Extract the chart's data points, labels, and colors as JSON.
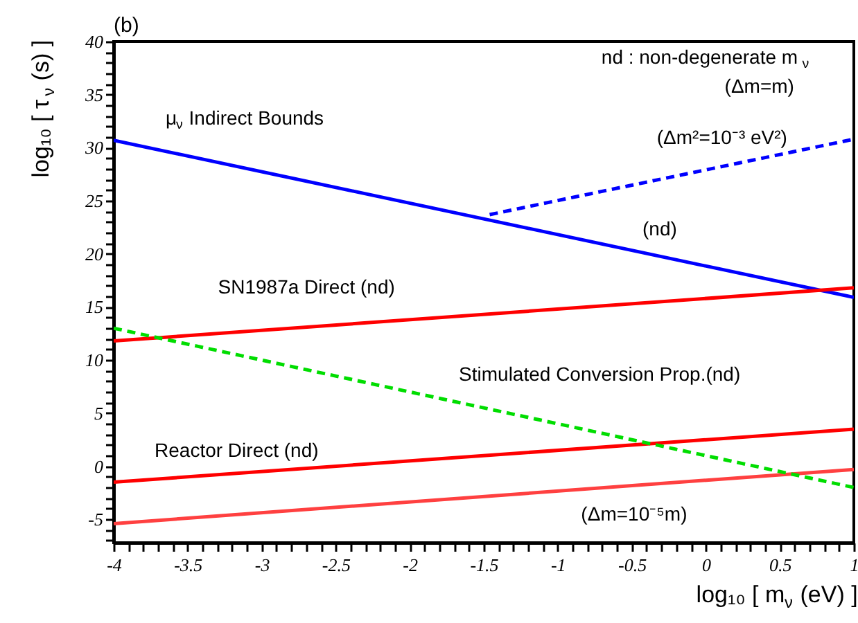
{
  "chart_data": {
    "type": "line",
    "xlabel": "log₁₀ [ m$_{ν}$ (eV) ]",
    "ylabel": "log₁₀ [ τ$_{ν}$ (s) ]",
    "xlim": [
      -4,
      1
    ],
    "ylim": [
      -7.2,
      40
    ],
    "xticks": [
      -4,
      {
        "value": -3.9,
        "label": null
      },
      {
        "value": -3.8,
        "label": null
      },
      {
        "value": -3.7,
        "label": null
      },
      {
        "value": -3.6,
        "label": null
      },
      -3.5,
      {
        "value": -3.4,
        "label": null
      },
      {
        "value": -3.3,
        "label": null
      },
      {
        "value": -3.2,
        "label": null
      },
      {
        "value": -3.1,
        "label": null
      },
      -3,
      {
        "value": -2.9,
        "label": null
      },
      {
        "value": -2.8,
        "label": null
      },
      {
        "value": -2.7,
        "label": null
      },
      {
        "value": -2.6,
        "label": null
      },
      -2.5,
      {
        "value": -2.4,
        "label": null
      },
      {
        "value": -2.3,
        "label": null
      },
      {
        "value": -2.2,
        "label": null
      },
      {
        "value": -2.1,
        "label": null
      },
      -2,
      {
        "value": -1.9,
        "label": null
      },
      {
        "value": -1.8,
        "label": null
      },
      {
        "value": -1.7,
        "label": null
      },
      {
        "value": -1.6,
        "label": null
      },
      -1.5,
      {
        "value": -1.4,
        "label": null
      },
      {
        "value": -1.3,
        "label": null
      },
      {
        "value": -1.2,
        "label": null
      },
      {
        "value": -1.1,
        "label": null
      },
      -1,
      {
        "value": -0.9,
        "label": null
      },
      {
        "value": -0.8,
        "label": null
      },
      {
        "value": -0.7,
        "label": null
      },
      {
        "value": -0.6,
        "label": null
      },
      -0.5,
      {
        "value": -0.4,
        "label": null
      },
      {
        "value": -0.3,
        "label": null
      },
      {
        "value": -0.2,
        "label": null
      },
      {
        "value": -0.1,
        "label": null
      },
      0,
      {
        "value": 0.1,
        "label": null
      },
      {
        "value": 0.2,
        "label": null
      },
      {
        "value": 0.3,
        "label": null
      },
      {
        "value": 0.4,
        "label": null
      },
      0.5,
      {
        "value": 0.6,
        "label": null
      },
      {
        "value": 0.7,
        "label": null
      },
      {
        "value": 0.8,
        "label": null
      },
      {
        "value": 0.9,
        "label": null
      },
      1
    ],
    "yticks": [
      {
        "value": -7,
        "label": null
      },
      {
        "value": -6,
        "label": null
      },
      -5,
      {
        "value": -4,
        "label": null
      },
      {
        "value": -3,
        "label": null
      },
      {
        "value": -2,
        "label": null
      },
      {
        "value": -1,
        "label": null
      },
      0,
      {
        "value": 1,
        "label": null
      },
      {
        "value": 2,
        "label": null
      },
      {
        "value": 3,
        "label": null
      },
      {
        "value": 4,
        "label": null
      },
      5,
      {
        "value": 6,
        "label": null
      },
      {
        "value": 7,
        "label": null
      },
      {
        "value": 8,
        "label": null
      },
      {
        "value": 9,
        "label": null
      },
      10,
      {
        "value": 11,
        "label": null
      },
      {
        "value": 12,
        "label": null
      },
      {
        "value": 13,
        "label": null
      },
      {
        "value": 14,
        "label": null
      },
      15,
      {
        "value": 16,
        "label": null
      },
      {
        "value": 17,
        "label": null
      },
      {
        "value": 18,
        "label": null
      },
      {
        "value": 19,
        "label": null
      },
      20,
      {
        "value": 21,
        "label": null
      },
      {
        "value": 22,
        "label": null
      },
      {
        "value": 23,
        "label": null
      },
      {
        "value": 24,
        "label": null
      },
      25,
      {
        "value": 26,
        "label": null
      },
      {
        "value": 27,
        "label": null
      },
      {
        "value": 28,
        "label": null
      },
      {
        "value": 29,
        "label": null
      },
      30,
      {
        "value": 31,
        "label": null
      },
      {
        "value": 32,
        "label": null
      },
      {
        "value": 33,
        "label": null
      },
      {
        "value": 34,
        "label": null
      },
      35,
      {
        "value": 36,
        "label": null
      },
      {
        "value": 37,
        "label": null
      },
      {
        "value": 38,
        "label": null
      },
      {
        "value": 39,
        "label": null
      },
      40
    ],
    "grid": false,
    "marker": "none",
    "series": [
      {
        "color": "#0000ff",
        "line_style": "solid",
        "x": [
          -4,
          1
        ],
        "values": [
          30.7,
          15.9
        ]
      },
      {
        "color": "#0000ff",
        "line_style": "dashed",
        "x": [
          -1.46,
          1
        ],
        "values": [
          23.7,
          30.8
        ]
      },
      {
        "color": "#ff0000",
        "line_style": "solid",
        "x": [
          -4,
          1
        ],
        "values": [
          11.8,
          16.8
        ]
      },
      {
        "color": "#ff0000",
        "line_style": "solid",
        "x": [
          -4,
          1
        ],
        "values": [
          -1.5,
          3.5
        ]
      },
      {
        "color": "#ff4040",
        "line_style": "solid",
        "x": [
          -4,
          1
        ],
        "values": [
          -5.4,
          -0.3
        ]
      },
      {
        "color": "#00dd00",
        "line_style": "dashed",
        "x": [
          -4,
          1
        ],
        "values": [
          13.0,
          -2.0
        ]
      }
    ],
    "annotations": [
      "(b)",
      "μ$_{ν}$ Indirect Bounds",
      "nd : non-degenerate m$_{ν}$",
      "(Δm=m)",
      "(Δm²=10⁻³ eV²)",
      "(nd)",
      "SN1987a Direct (nd)",
      "Stimulated Conversion Prop.(nd)",
      "Reactor Direct (nd)",
      "(Δm=10⁻⁵m)"
    ]
  }
}
